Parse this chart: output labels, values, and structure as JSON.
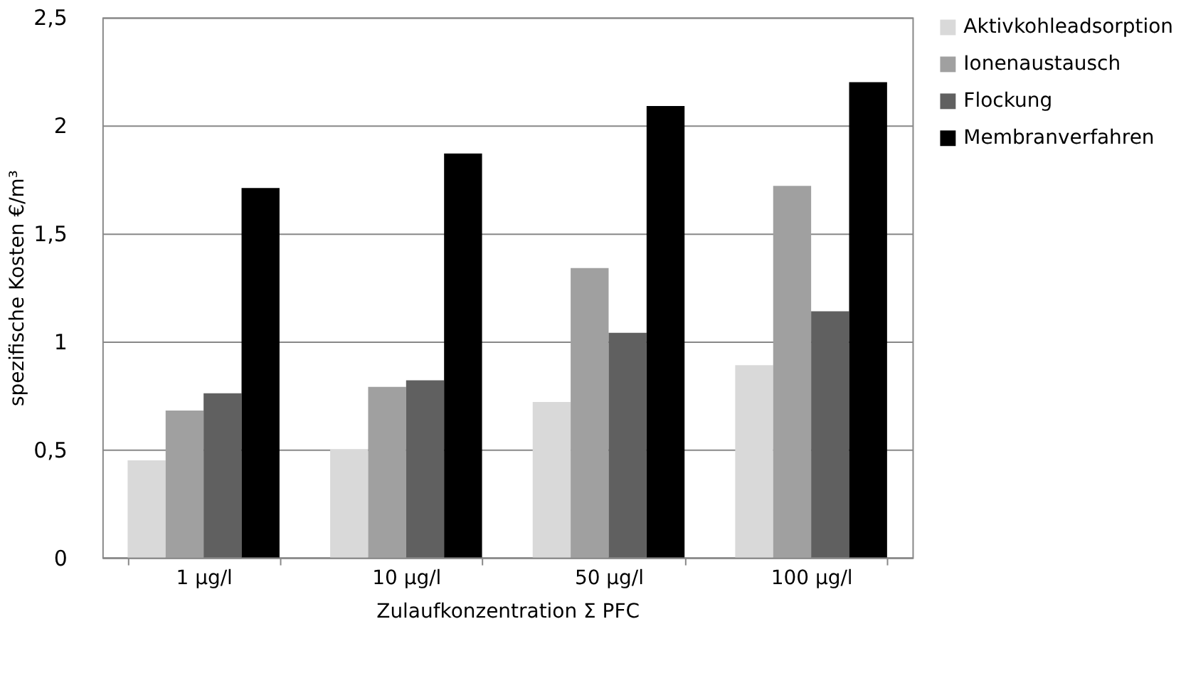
{
  "chart_data": {
    "type": "bar",
    "xlabel": "Zulaufkonzentration Σ  PFC",
    "ylabel": "spezifische Kosten €/m³",
    "categories": [
      "1 µg/l",
      "10 µg/l",
      "50 µg/l",
      "100 µg/l"
    ],
    "series": [
      {
        "name": "Aktivkohleadsorption",
        "color": "#d9d9d9",
        "values": [
          0.45,
          0.5,
          0.72,
          0.89
        ]
      },
      {
        "name": "Ionenaustausch",
        "color": "#a0a0a0",
        "values": [
          0.68,
          0.79,
          1.34,
          1.72
        ]
      },
      {
        "name": "Flockung",
        "color": "#606060",
        "values": [
          0.76,
          0.82,
          1.04,
          1.14
        ]
      },
      {
        "name": "Membranverfahren",
        "color": "#000000",
        "values": [
          1.71,
          1.87,
          2.09,
          2.2
        ]
      }
    ],
    "ylim": [
      0,
      2.5
    ],
    "yticks": [
      0,
      {
        "value": 0.5,
        "label": "0,5"
      },
      1,
      {
        "value": 1.5,
        "label": "1,5"
      },
      2,
      {
        "value": 2.5,
        "label": "2,5"
      }
    ],
    "grid": "y",
    "legend": "right"
  }
}
